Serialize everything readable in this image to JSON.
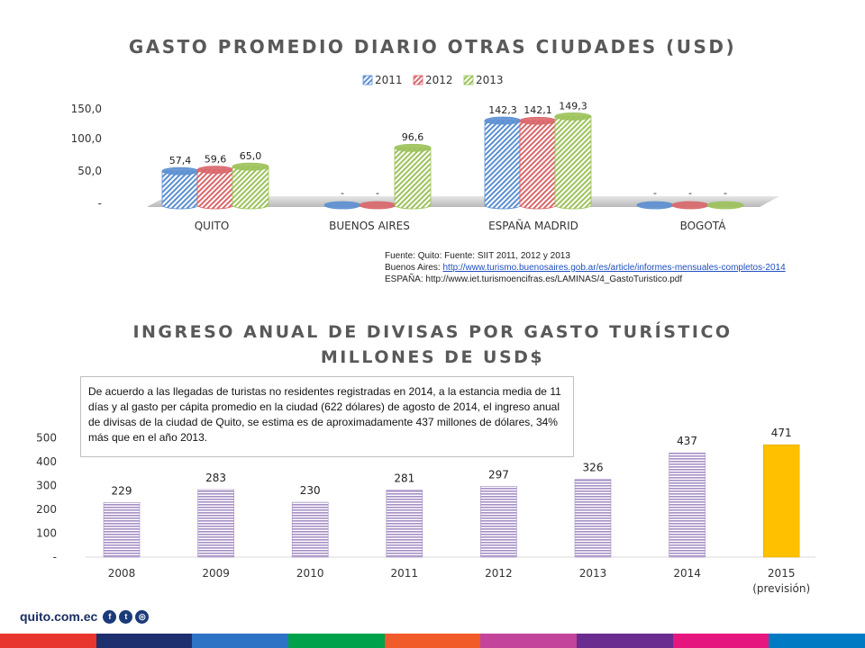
{
  "chart1": {
    "title": "GASTO PROMEDIO DIARIO OTRAS CIUDADES (USD)",
    "y_ticks": [
      "150,0",
      "100,0",
      "50,0",
      "-"
    ],
    "chart_data": {
      "type": "bar",
      "title": "GASTO PROMEDIO DIARIO OTRAS CIUDADES (USD)",
      "categories": [
        "QUITO",
        "BUENOS AIRES",
        "ESPAÑA  MADRID",
        "BOGOTÁ"
      ],
      "series": [
        {
          "name": "2011",
          "values": [
            57.4,
            0,
            142.3,
            0
          ],
          "labels": [
            "57,4",
            "-",
            "142,3",
            "-"
          ]
        },
        {
          "name": "2012",
          "values": [
            59.6,
            0,
            142.1,
            0
          ],
          "labels": [
            "59,6",
            "-",
            "142,1",
            "-"
          ]
        },
        {
          "name": "2013",
          "values": [
            65.0,
            96.6,
            149.3,
            0
          ],
          "labels": [
            "65,0",
            "96,6",
            "149,3",
            "-"
          ]
        }
      ],
      "ylim": [
        0,
        150
      ],
      "legend": "top"
    },
    "colors": {
      "2011": "#5b8fd1",
      "2012": "#d9666a",
      "2013": "#9cc25a"
    }
  },
  "source": {
    "line1": "Fuente: Quito: Fuente: SIIT 2011, 2012 y 2013",
    "line2_prefix": "Buenos Aires: ",
    "line2_link": "http://www.turismo.buenosaires.gob.ar/es/article/informes-mensuales-completos-2014",
    "line3": "ESPAÑA: http://www.iet.turismoencifras.es/LAMINAS/4_GastoTuristico.pdf"
  },
  "chart2": {
    "title_line1": "INGRESO ANUAL DE DIVISAS POR GASTO TURÍSTICO",
    "title_line2": "MILLONES DE USD$",
    "note": "De acuerdo a las  llegadas de turistas no residentes registradas en 2014, a la estancia media de 11 días y al gasto per cápita promedio en la ciudad (622 dólares) de agosto de 2014,   el ingreso anual de divisas de la ciudad de Quito, se estima es de aproximadamente 437 millones de dólares, 34% más que en el año 2013.",
    "y_ticks": [
      "500",
      "400",
      "300",
      "200",
      "100",
      "-"
    ],
    "chart_data": {
      "type": "bar",
      "title": "INGRESO ANUAL DE DIVISAS POR GASTO TURÍSTICO MILLONES DE USD$",
      "categories": [
        "2008",
        "2009",
        "2010",
        "2011",
        "2012",
        "2013",
        "2014",
        "2015"
      ],
      "category_sublabels": [
        "",
        "",
        "",
        "",
        "",
        "",
        "",
        "(previsión)"
      ],
      "values": [
        229,
        283,
        230,
        281,
        297,
        326,
        437,
        471
      ],
      "ylim": [
        0,
        500
      ],
      "grid": false
    },
    "colors": {
      "bar": "#a58fc4",
      "forecast": "#ffc000"
    }
  },
  "footer": {
    "logo_text": "quito.com.ec",
    "icons": [
      "facebook-icon",
      "twitter-icon",
      "instagram-icon"
    ],
    "color_bar": [
      "#e8352e",
      "#1d2f6f",
      "#2c73c5",
      "#00a14b",
      "#f15a29",
      "#c2449b",
      "#6b2c8f",
      "#e5177e",
      "#007bc3"
    ]
  }
}
